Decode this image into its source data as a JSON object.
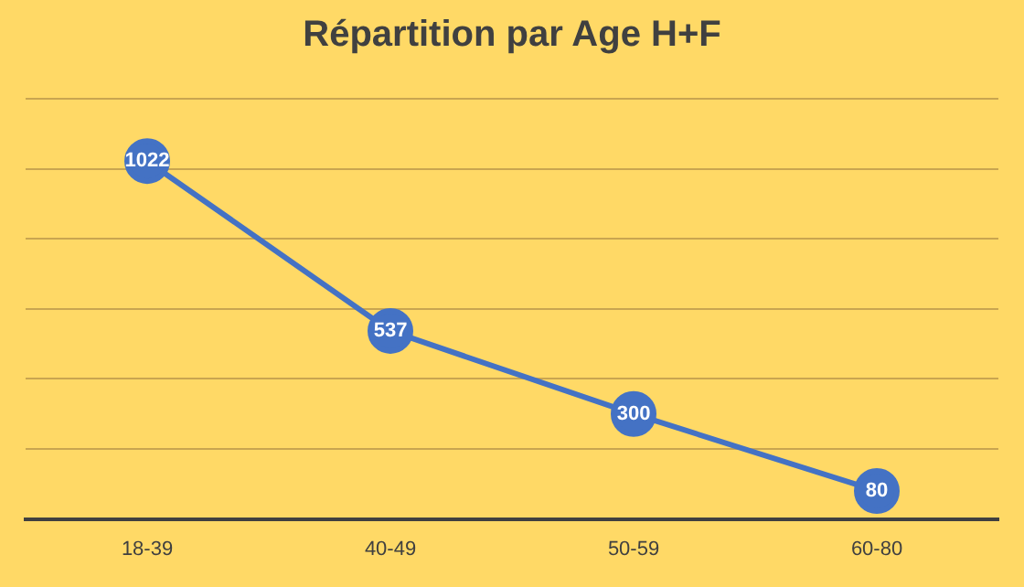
{
  "chart_data": {
    "type": "line",
    "title": "Répartition par Age H+F",
    "categories": [
      "18-39",
      "40-49",
      "50-59",
      "60-80"
    ],
    "series": [
      {
        "color": "#4472c4",
        "values": [
          1022,
          537,
          300,
          80
        ]
      }
    ],
    "ylim": [
      0,
      1200
    ],
    "yticks": [
      {
        "value": 0,
        "label": null
      },
      {
        "value": 200,
        "label": null
      },
      {
        "value": 400,
        "label": null
      },
      {
        "value": 600,
        "label": null
      },
      {
        "value": 800,
        "label": null
      },
      {
        "value": 1000,
        "label": null
      },
      {
        "value": 1200,
        "label": null
      }
    ],
    "grid": "y",
    "tick_labels": "x",
    "data_labels": true,
    "marker": "circle",
    "line_style": "solid",
    "legend": false
  }
}
